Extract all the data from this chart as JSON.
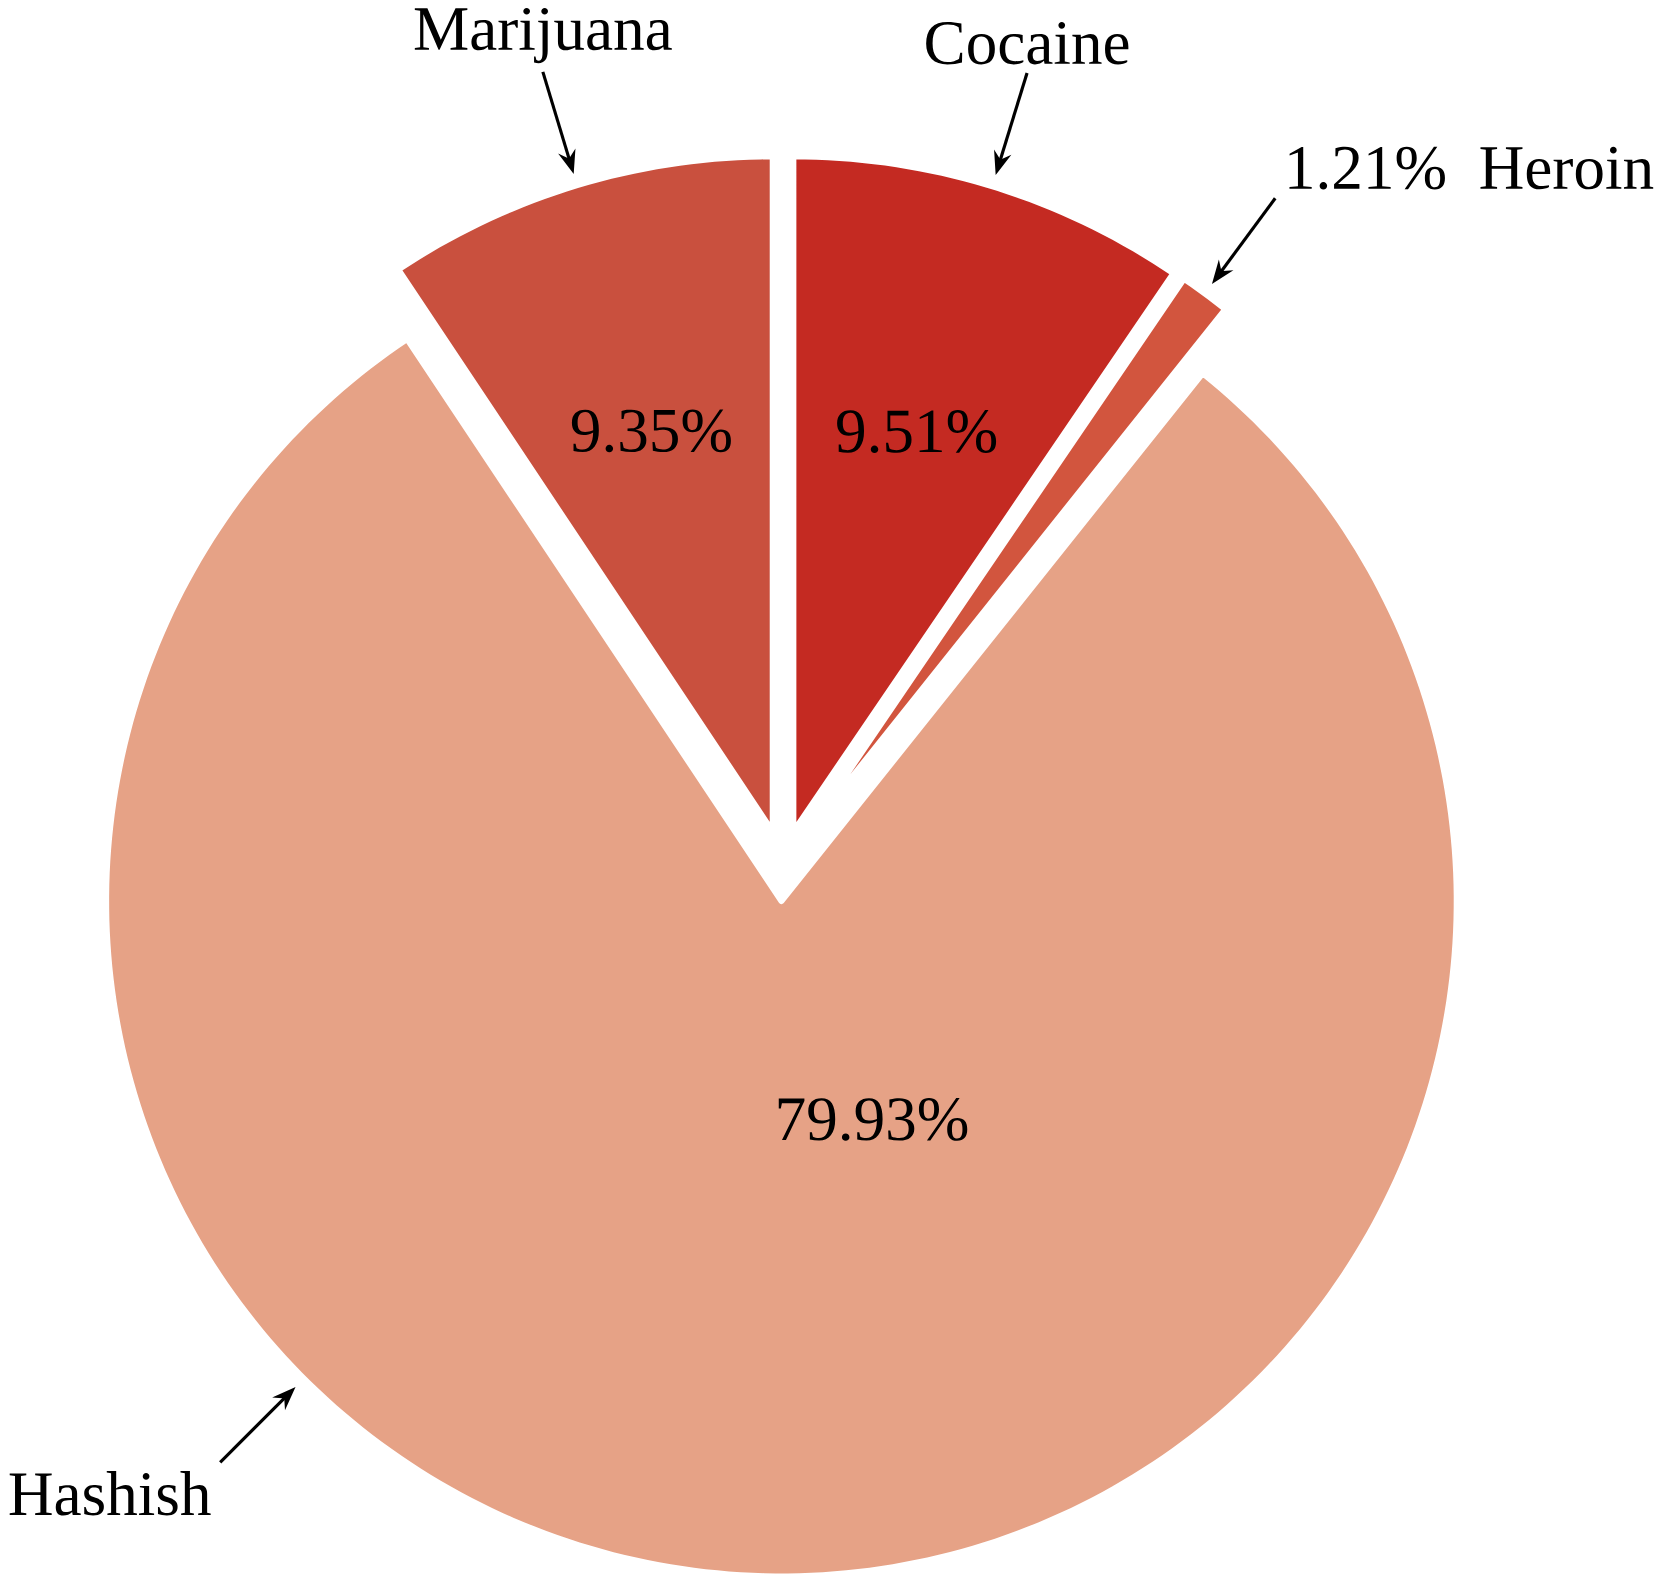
{
  "chart_data": {
    "type": "pie",
    "categories": [
      "Cocaine",
      "Heroin",
      "Hashish",
      "Marijuana"
    ],
    "values": [
      9.51,
      1.21,
      79.93,
      9.35
    ],
    "colors": [
      "#c42a22",
      "#d2553e",
      "#e6a286",
      "#c9503e"
    ],
    "value_labels": [
      "9.51%",
      "1.21%",
      "79.93%",
      "9.35%"
    ]
  }
}
